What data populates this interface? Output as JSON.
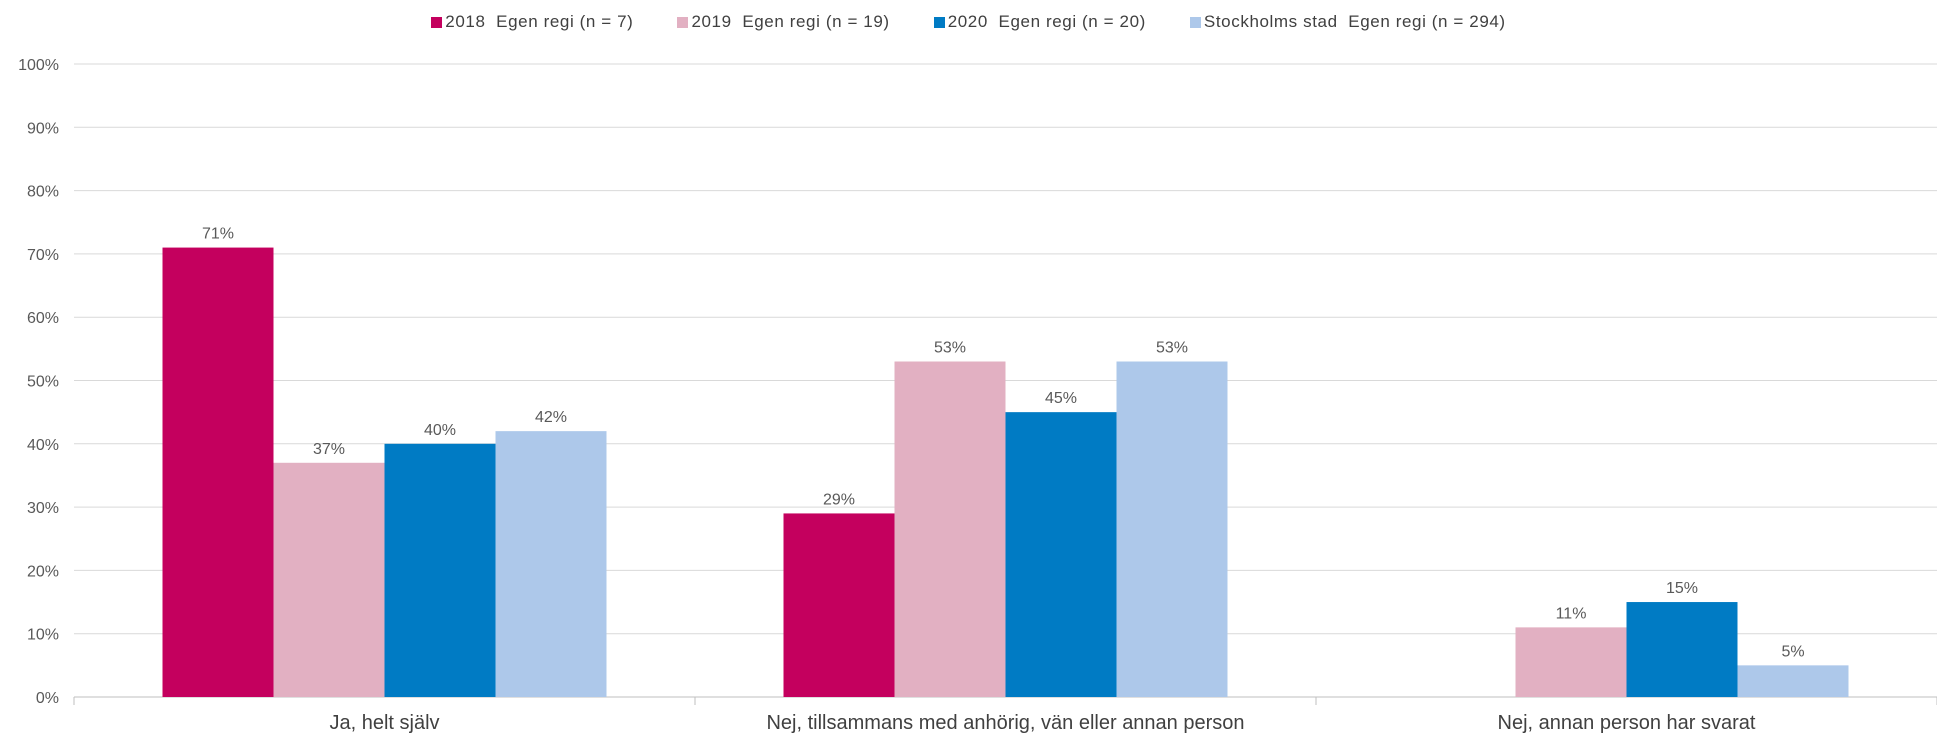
{
  "chart_data": {
    "type": "bar",
    "title": "",
    "xlabel": "",
    "ylabel": "",
    "ylim": [
      0,
      100
    ],
    "yticks": [
      0,
      10,
      20,
      30,
      40,
      50,
      60,
      70,
      80,
      90,
      100
    ],
    "ytick_labels": [
      "0%",
      "10%",
      "20%",
      "30%",
      "40%",
      "50%",
      "60%",
      "70%",
      "80%",
      "90%",
      "100%"
    ],
    "grid": true,
    "legend_position": "top-center",
    "categories": [
      "Ja, helt själv",
      "Nej, tillsammans med anhörig, vän eller annan person",
      "Nej, annan person har svarat"
    ],
    "series": [
      {
        "name": "2018  Egen regi (n = 7)",
        "color": "#c4005e",
        "values": [
          71,
          29,
          null
        ],
        "labels": [
          "71%",
          "29%",
          null
        ]
      },
      {
        "name": "2019  Egen regi (n = 19)",
        "color": "#e2b0c2",
        "values": [
          37,
          53,
          11
        ],
        "labels": [
          "37%",
          "53%",
          "11%"
        ]
      },
      {
        "name": "2020  Egen regi (n = 20)",
        "color": "#007bc4",
        "values": [
          40,
          45,
          15
        ],
        "labels": [
          "40%",
          "45%",
          "15%"
        ]
      },
      {
        "name": "Stockholms stad  Egen regi (n = 294)",
        "color": "#adc8ea",
        "values": [
          42,
          53,
          5
        ],
        "labels": [
          "42%",
          "53%",
          "5%"
        ]
      }
    ]
  }
}
